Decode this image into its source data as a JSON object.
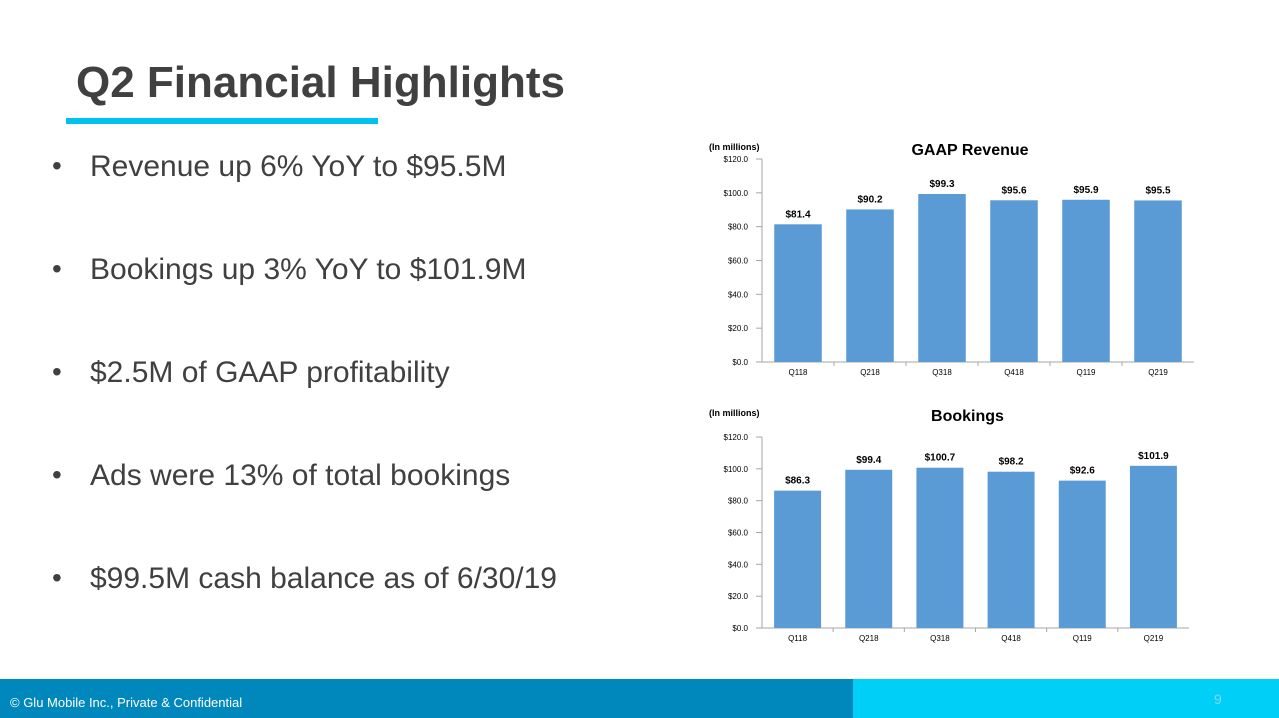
{
  "slide": {
    "title": "Q2 Financial Highlights",
    "bullets": [
      "Revenue up 6% YoY to $95.5M",
      "Bookings up 3% YoY to $101.9M",
      "$2.5M of GAAP profitability",
      "Ads were 13% of total bookings",
      "$99.5M cash balance as of 6/30/19"
    ],
    "bullet_symbol": "•",
    "footer_text": "© Glu Mobile Inc., Private & Confidential",
    "page_number": "9"
  },
  "colors": {
    "bar": "#5b9bd5",
    "accent": "#00c2f0",
    "footer_dark": "#0088bd",
    "footer_light": "#00d0f8",
    "text": "#404040"
  },
  "chart_data": [
    {
      "type": "bar",
      "title": "GAAP Revenue",
      "unit_label": "(In millions)",
      "categories": [
        "Q118",
        "Q218",
        "Q318",
        "Q418",
        "Q119",
        "Q219"
      ],
      "values": [
        81.4,
        90.2,
        99.3,
        95.6,
        95.9,
        95.5
      ],
      "data_labels": [
        "$81.4",
        "$90.2",
        "$99.3",
        "$95.6",
        "$95.9",
        "$95.5"
      ],
      "yticks": [
        "$0.0",
        "$20.0",
        "$40.0",
        "$60.0",
        "$80.0",
        "$100.0",
        "$120.0"
      ],
      "ylim": [
        0,
        120
      ],
      "grid": false,
      "legend": "none"
    },
    {
      "type": "bar",
      "title": "Bookings",
      "unit_label": "(In millions)",
      "categories": [
        "Q118",
        "Q218",
        "Q318",
        "Q418",
        "Q119",
        "Q219"
      ],
      "values": [
        86.3,
        99.4,
        100.7,
        98.2,
        92.6,
        101.9
      ],
      "data_labels": [
        "$86.3",
        "$99.4",
        "$100.7",
        "$98.2",
        "$92.6",
        "$101.9"
      ],
      "yticks": [
        "$0.0",
        "$20.0",
        "$40.0",
        "$60.0",
        "$80.0",
        "$100.0",
        "$120.0"
      ],
      "ylim": [
        0,
        120
      ],
      "grid": false,
      "legend": "none"
    }
  ]
}
